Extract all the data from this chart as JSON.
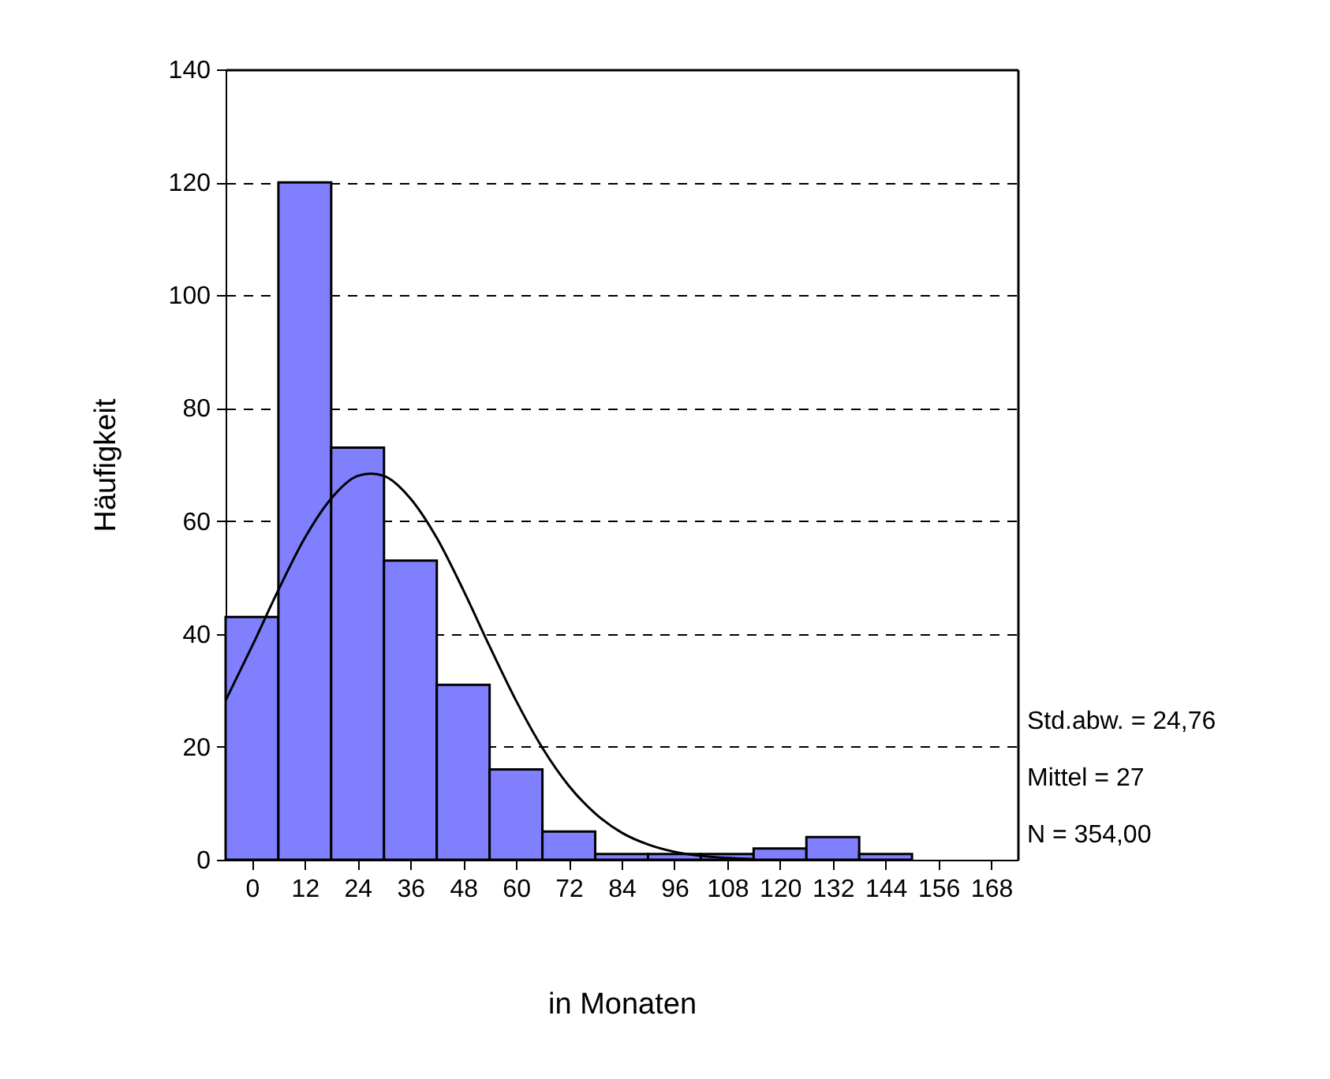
{
  "chart_data": {
    "type": "histogram",
    "xlabel": "in Monaten",
    "ylabel": "Häufigkeit",
    "bins": [
      -6,
      6,
      18,
      30,
      42,
      54,
      66,
      78,
      90,
      102,
      114,
      126,
      138,
      150
    ],
    "values": [
      43,
      120,
      73,
      53,
      31,
      16,
      5,
      1,
      1,
      1,
      2,
      4,
      1
    ],
    "color": "#8080ff",
    "series": [
      {
        "type": "line",
        "color": "#000000",
        "x": [
          -6,
          0,
          6,
          12,
          18,
          24,
          27,
          30,
          36,
          42,
          48,
          54,
          60,
          66,
          72,
          78,
          84,
          90,
          96,
          102,
          108,
          114
        ],
        "values": [
          28.2,
          37.8,
          47.8,
          57.0,
          64.0,
          68.0,
          68.4,
          68.0,
          64.0,
          57.0,
          47.8,
          37.8,
          28.2,
          19.8,
          13.1,
          8.2,
          4.8,
          2.7,
          1.4,
          0.7,
          0.3,
          0.1
        ]
      }
    ],
    "xlim": [
      -6,
      174
    ],
    "xticks": [
      0,
      12,
      24,
      36,
      48,
      60,
      72,
      84,
      96,
      108,
      120,
      132,
      144,
      156,
      168
    ],
    "ylim": [
      0,
      140
    ],
    "yticks": [
      0,
      20,
      40,
      60,
      80,
      100,
      120,
      140
    ],
    "grid": "y",
    "annotations": [
      "Std.abw. = 24,76",
      "Mittel = 27",
      "N = 354,00"
    ]
  }
}
